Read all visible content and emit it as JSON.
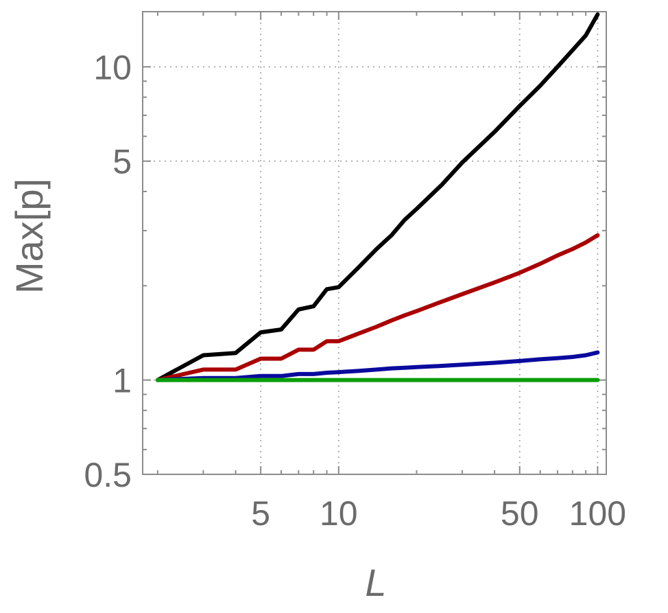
{
  "chart_data": {
    "type": "line",
    "xscale": "log",
    "yscale": "log",
    "xlim": [
      1.75,
      108
    ],
    "ylim": [
      0.5,
      15
    ],
    "grid": true,
    "xlabel": "L",
    "ylabel": "Max[p]",
    "x_ticks": [
      5,
      10,
      50,
      100
    ],
    "x_tick_labels": [
      "5",
      "10",
      "50",
      "100"
    ],
    "y_ticks": [
      0.5,
      1,
      5,
      10
    ],
    "y_tick_labels": [
      "0.5",
      "1",
      "5",
      "10"
    ],
    "x_grid": [
      5,
      10,
      50,
      100
    ],
    "y_grid": [
      1,
      5,
      10
    ],
    "series": [
      {
        "color": "#000000",
        "x": [
          2,
          3,
          4,
          5,
          6,
          7,
          8,
          9,
          10,
          12,
          14,
          16,
          18,
          20,
          25,
          30,
          40,
          50,
          60,
          70,
          80,
          90,
          100
        ],
        "y": [
          1.0,
          1.2,
          1.22,
          1.42,
          1.45,
          1.68,
          1.72,
          1.95,
          1.98,
          2.3,
          2.62,
          2.9,
          3.25,
          3.52,
          4.2,
          4.95,
          6.2,
          7.5,
          8.7,
          10.0,
          11.3,
          12.6,
          14.7
        ]
      },
      {
        "color": "#aa0000",
        "x": [
          2,
          3,
          4,
          5,
          6,
          7,
          8,
          9,
          10,
          12,
          14,
          16,
          18,
          20,
          25,
          30,
          40,
          50,
          60,
          70,
          80,
          90,
          100
        ],
        "y": [
          1.0,
          1.08,
          1.08,
          1.17,
          1.17,
          1.25,
          1.25,
          1.33,
          1.33,
          1.41,
          1.48,
          1.55,
          1.61,
          1.66,
          1.78,
          1.88,
          2.05,
          2.2,
          2.35,
          2.5,
          2.62,
          2.75,
          2.9
        ]
      },
      {
        "color": "#0a0a9e",
        "x": [
          2,
          3,
          4,
          5,
          6,
          7,
          8,
          9,
          10,
          12,
          14,
          16,
          18,
          20,
          25,
          30,
          40,
          50,
          60,
          70,
          80,
          90,
          100
        ],
        "y": [
          1.0,
          1.015,
          1.015,
          1.03,
          1.03,
          1.045,
          1.045,
          1.055,
          1.06,
          1.07,
          1.08,
          1.09,
          1.095,
          1.1,
          1.11,
          1.12,
          1.135,
          1.15,
          1.165,
          1.175,
          1.185,
          1.2,
          1.225
        ]
      },
      {
        "color": "#0a9e0a",
        "x": [
          2,
          5,
          10,
          50,
          100
        ],
        "y": [
          1.0,
          1.0,
          1.0,
          1.0,
          1.0
        ]
      }
    ]
  }
}
